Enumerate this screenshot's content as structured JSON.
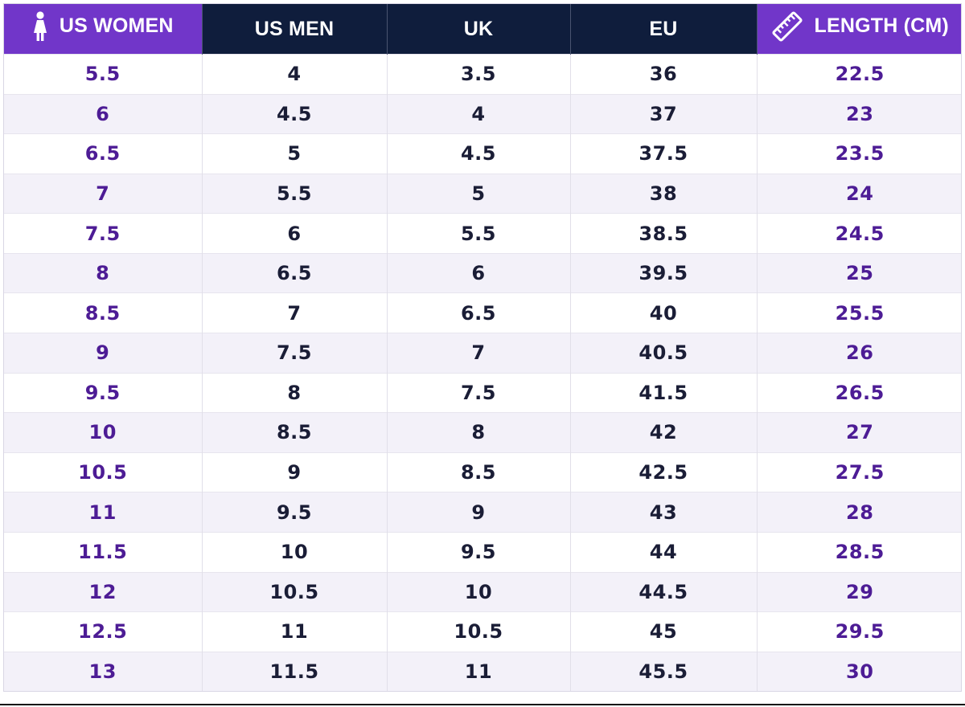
{
  "colors": {
    "header_purple": "#7136c9",
    "header_navy": "#0f1d3c",
    "women_text": "#4d1c95",
    "other_text": "#1a1d36",
    "stripe": "#f3f1f9"
  },
  "header": {
    "us_women": {
      "label": "US WOMEN",
      "icon": "woman-icon"
    },
    "us_men": {
      "label": "US MEN"
    },
    "uk": {
      "label": "UK"
    },
    "eu": {
      "label": "EU"
    },
    "length": {
      "label": "LENGTH (CM)",
      "icon": "ruler-icon"
    }
  },
  "rows": [
    {
      "us_women": "5.5",
      "us_men": "4",
      "uk": "3.5",
      "eu": "36",
      "length_cm": "22.5"
    },
    {
      "us_women": "6",
      "us_men": "4.5",
      "uk": "4",
      "eu": "37",
      "length_cm": "23"
    },
    {
      "us_women": "6.5",
      "us_men": "5",
      "uk": "4.5",
      "eu": "37.5",
      "length_cm": "23.5"
    },
    {
      "us_women": "7",
      "us_men": "5.5",
      "uk": "5",
      "eu": "38",
      "length_cm": "24"
    },
    {
      "us_women": "7.5",
      "us_men": "6",
      "uk": "5.5",
      "eu": "38.5",
      "length_cm": "24.5"
    },
    {
      "us_women": "8",
      "us_men": "6.5",
      "uk": "6",
      "eu": "39.5",
      "length_cm": "25"
    },
    {
      "us_women": "8.5",
      "us_men": "7",
      "uk": "6.5",
      "eu": "40",
      "length_cm": "25.5"
    },
    {
      "us_women": "9",
      "us_men": "7.5",
      "uk": "7",
      "eu": "40.5",
      "length_cm": "26"
    },
    {
      "us_women": "9.5",
      "us_men": "8",
      "uk": "7.5",
      "eu": "41.5",
      "length_cm": "26.5"
    },
    {
      "us_women": "10",
      "us_men": "8.5",
      "uk": "8",
      "eu": "42",
      "length_cm": "27"
    },
    {
      "us_women": "10.5",
      "us_men": "9",
      "uk": "8.5",
      "eu": "42.5",
      "length_cm": "27.5"
    },
    {
      "us_women": "11",
      "us_men": "9.5",
      "uk": "9",
      "eu": "43",
      "length_cm": "28"
    },
    {
      "us_women": "11.5",
      "us_men": "10",
      "uk": "9.5",
      "eu": "44",
      "length_cm": "28.5"
    },
    {
      "us_women": "12",
      "us_men": "10.5",
      "uk": "10",
      "eu": "44.5",
      "length_cm": "29"
    },
    {
      "us_women": "12.5",
      "us_men": "11",
      "uk": "10.5",
      "eu": "45",
      "length_cm": "29.5"
    },
    {
      "us_women": "13",
      "us_men": "11.5",
      "uk": "11",
      "eu": "45.5",
      "length_cm": "30"
    }
  ]
}
